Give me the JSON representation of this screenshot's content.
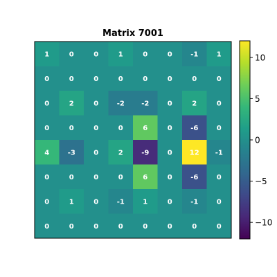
{
  "chart_data": {
    "type": "heatmap",
    "title": "Matrix 7001",
    "rows": [
      [
        1,
        0,
        0,
        1,
        0,
        0,
        -1,
        1
      ],
      [
        0,
        0,
        0,
        0,
        0,
        0,
        0,
        0
      ],
      [
        0,
        2,
        0,
        -2,
        -2,
        0,
        2,
        0
      ],
      [
        0,
        0,
        0,
        0,
        6,
        0,
        -6,
        0
      ],
      [
        4,
        -3,
        0,
        2,
        -9,
        0,
        12,
        -1
      ],
      [
        0,
        0,
        0,
        0,
        6,
        0,
        -6,
        0
      ],
      [
        0,
        1,
        0,
        -1,
        1,
        0,
        -1,
        0
      ],
      [
        0,
        0,
        0,
        0,
        0,
        0,
        0,
        0
      ]
    ],
    "vmin": -12,
    "vmax": 12,
    "colormap": "viridis",
    "colorbar_ticks": [
      10,
      5,
      0,
      -5,
      -10
    ],
    "colorbar_tick_labels": [
      "10",
      "5",
      "0",
      "−5",
      "−10"
    ],
    "annotation_color": "#ffffff",
    "show_axes_ticks": false
  }
}
